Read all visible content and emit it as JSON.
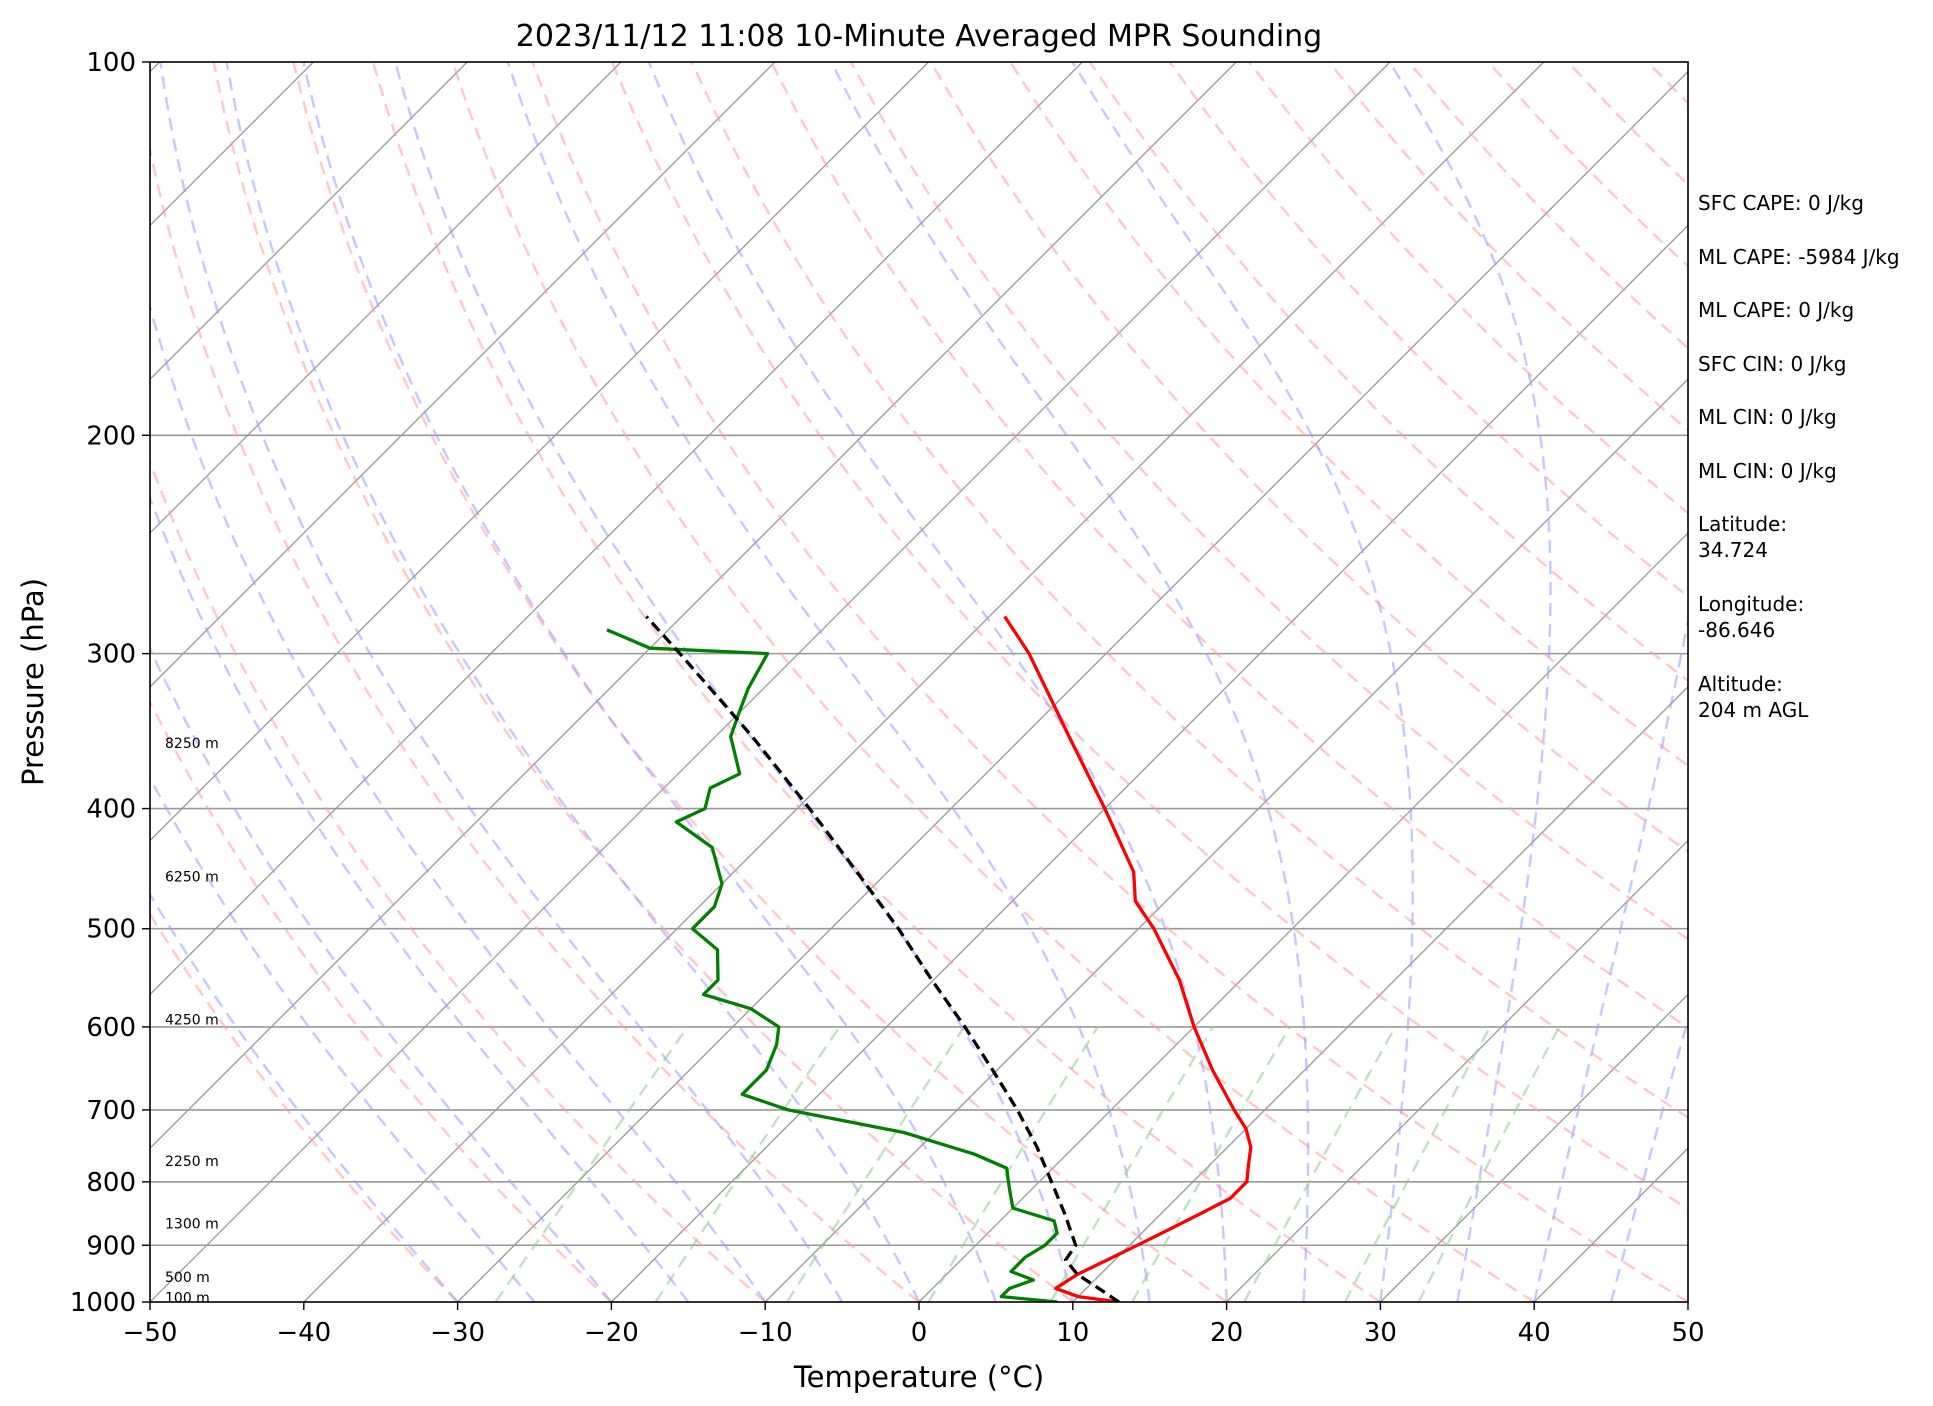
{
  "chart_data": {
    "type": "line",
    "title": "2023/11/12 11:08 10-Minute Averaged MPR Sounding",
    "xlabel": "Temperature (°C)",
    "ylabel": "Pressure (hPa)",
    "xlim": [
      -50,
      50
    ],
    "ylim": [
      1000,
      100
    ],
    "yscale": "log",
    "skew": true,
    "x_ticks": [
      "−50",
      "−40",
      "−30",
      "−20",
      "−10",
      "0",
      "10",
      "20",
      "30",
      "40",
      "50"
    ],
    "y_ticks": [
      "100",
      "200",
      "300",
      "400",
      "500",
      "600",
      "700",
      "800",
      "900",
      "1000"
    ],
    "height_labels": [
      "8250 m",
      "6250 m",
      "4250 m",
      "2250 m",
      "1300 m",
      "500 m",
      "100 m"
    ],
    "colors": {
      "temperature": "#ff0000",
      "dewpoint": "#008000",
      "parcel": "#000000",
      "dry_adiabats": "#ff9999",
      "moist_adiabats": "#9999ff",
      "mixing_ratio": "#88cc88",
      "isotherms": "#999999"
    },
    "series": [
      {
        "key": "temperature",
        "pressure": [
          1000,
          990,
          975,
          950,
          925,
          900,
          875,
          850,
          825,
          800,
          775,
          750,
          725,
          700,
          650,
          600,
          550,
          500,
          475,
          450,
          400,
          350,
          300,
          280
        ],
        "values": [
          13,
          10,
          8,
          8.5,
          9.5,
          10.5,
          11.5,
          12.5,
          13.5,
          13.5,
          12.5,
          11.5,
          10,
          8,
          4,
          0,
          -4,
          -9,
          -12,
          -14,
          -20,
          -27,
          -35,
          -39
        ]
      },
      {
        "key": "dewpoint",
        "pressure": [
          1000,
          990,
          975,
          960,
          945,
          920,
          900,
          880,
          860,
          840,
          820,
          800,
          780,
          760,
          730,
          700,
          680,
          650,
          620,
          600,
          580,
          565,
          550,
          520,
          500,
          480,
          460,
          430,
          410,
          400,
          385,
          375,
          350,
          335,
          320,
          300,
          297,
          287
        ],
        "values": [
          9,
          5,
          5,
          6,
          4,
          4,
          4.5,
          4.5,
          3.5,
          0,
          -1,
          -2,
          -3,
          -6,
          -12,
          -21,
          -25,
          -25,
          -26,
          -27,
          -30,
          -34,
          -34,
          -36,
          -39,
          -39,
          -40,
          -43,
          -47,
          -46,
          -47,
          -46,
          -49,
          -50,
          -51,
          -52,
          -60,
          -64
        ]
      },
      {
        "key": "parcel",
        "pressure": [
          1000,
          975,
          950,
          925,
          900,
          850,
          800,
          750,
          700,
          650,
          600,
          550,
          500,
          450,
          400,
          350,
          300,
          280
        ],
        "values": [
          13,
          10.8,
          8.5,
          6.8,
          6.5,
          3.8,
          0.8,
          -2.4,
          -6.1,
          -10.3,
          -14.9,
          -20.1,
          -25.6,
          -32.0,
          -39.2,
          -47.6,
          -57.7,
          -62.3
        ]
      }
    ]
  },
  "info": {
    "sfc_cape": "SFC CAPE: 0 J/kg",
    "ml_cape_1": "ML CAPE: -5984 J/kg",
    "ml_cape_2": "ML CAPE: 0 J/kg",
    "sfc_cin": "SFC CIN: 0 J/kg",
    "ml_cin_1": "ML CIN: 0 J/kg",
    "ml_cin_2": "ML CIN: 0 J/kg",
    "latitude_label": "Latitude:",
    "latitude_value": "34.724",
    "longitude_label": "Longitude:",
    "longitude_value": "-86.646",
    "altitude_label": "Altitude:",
    "altitude_value": "204 m AGL"
  }
}
